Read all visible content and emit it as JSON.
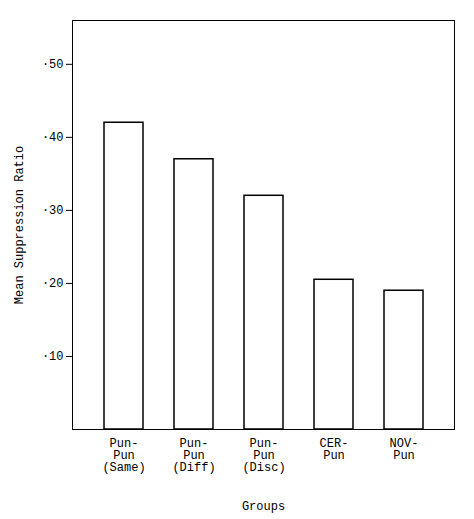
{
  "chart_data": {
    "type": "bar",
    "categories": [
      "Pun-\nPun\n(Same)",
      "Pun-\nPun\n(Diff)",
      "Pun-\nPun\n(Disc)",
      "CER-\nPun",
      "NOV-\nPun"
    ],
    "values": [
      0.42,
      0.37,
      0.32,
      0.205,
      0.19
    ],
    "color": "#ffffff",
    "xlabel": "Groups",
    "ylabel": "Mean Suppression Ratio",
    "ylim": [
      0,
      0.56
    ],
    "yticks": [
      {
        "value": 0.1,
        "label": "·10"
      },
      {
        "value": 0.2,
        "label": "·20"
      },
      {
        "value": 0.3,
        "label": "·30"
      },
      {
        "value": 0.4,
        "label": "·40"
      },
      {
        "value": 0.5,
        "label": "·50"
      }
    ],
    "grid": false
  }
}
